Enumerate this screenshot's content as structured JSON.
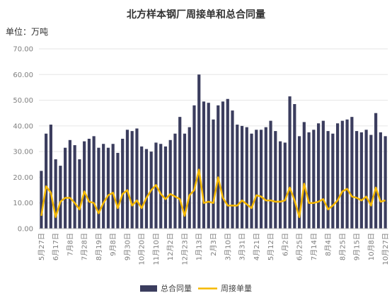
{
  "chart_data": {
    "type": "bar+line",
    "title": "北方样本钢厂周接单和总合同量",
    "unit_label": "单位：万吨",
    "ylim": [
      0,
      70
    ],
    "ytick_labels": [
      "0.00",
      "10.00",
      "20.00",
      "30.00",
      "40.00",
      "50.00",
      "60.00",
      "70.00"
    ],
    "xtick_labels": [
      "5月27日",
      "6月17日",
      "7月8日",
      "7月28日",
      "8月19日",
      "9月8日",
      "9月30日",
      "10月20日",
      "11月10日",
      "12月2日",
      "12月23日",
      "1月13日",
      "2月3日",
      "3月10日",
      "3月31日",
      "4月21日",
      "5月12日",
      "6月2日",
      "6月25日",
      "7月14日",
      "8月4日",
      "8月25日",
      "9月15日",
      "10月8日",
      "10月27日"
    ],
    "series": [
      {
        "name": "总合同量",
        "type": "bar",
        "color": "#3b3d5e",
        "values": [
          22.5,
          37,
          40.5,
          27,
          24.5,
          31.5,
          34.5,
          32.5,
          27,
          34,
          35,
          36,
          31.5,
          33,
          31.5,
          33,
          29.5,
          35,
          38.5,
          38,
          39,
          32,
          31,
          30,
          33.5,
          33,
          32,
          34.5,
          37,
          43.5,
          37,
          39.5,
          48,
          60,
          49.5,
          49,
          42.5,
          48,
          49.5,
          50.5,
          46,
          40.5,
          40,
          39.5,
          37,
          38.5,
          38.5,
          39.5,
          42,
          38,
          34,
          33.5,
          51.5,
          48.5,
          36,
          41.5,
          37.5,
          38.5,
          41,
          42,
          38,
          37,
          41,
          42,
          42.5,
          43.5,
          38,
          37.5,
          38.5,
          36.5,
          45,
          37.5,
          36
        ]
      },
      {
        "name": "周接单量",
        "type": "line",
        "color": "#f5b800",
        "values": [
          5,
          16.5,
          14,
          4.5,
          10.5,
          12,
          12,
          10,
          7.5,
          14.5,
          10.5,
          10,
          6,
          10,
          13,
          14,
          8,
          13.5,
          15,
          9,
          11,
          8,
          12,
          15,
          17,
          13.5,
          11.5,
          13.5,
          12.5,
          11.5,
          5,
          13,
          15,
          23,
          10,
          10.5,
          10,
          20,
          12,
          9,
          9,
          9,
          11,
          9.5,
          8,
          13,
          12.5,
          11,
          11,
          10.5,
          10.5,
          11,
          16,
          11,
          4.5,
          17.5,
          10,
          10,
          10.5,
          11.5,
          7.5,
          9,
          11,
          14.5,
          15.5,
          12.5,
          12,
          11,
          12.5,
          9,
          16,
          10.5,
          11
        ]
      }
    ]
  }
}
